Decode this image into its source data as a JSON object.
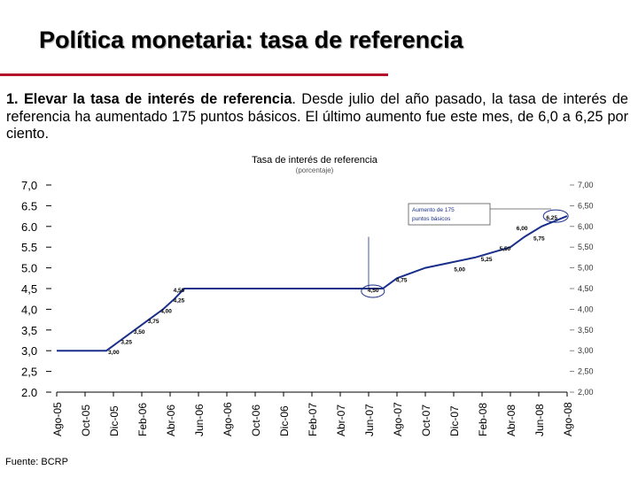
{
  "slide": {
    "title": "Política monetaria: tasa de referencia",
    "paragraph_bold": "1. Elevar la tasa de interés de referencia",
    "paragraph_rest": ". Desde julio del año pasado, la tasa de interés de referencia ha aumentado 175 puntos básicos. El último aumento fue este mes, de 6,0 a 6,25 por ciento.",
    "source": "Fuente: BCRP"
  },
  "colors": {
    "accent_rule": "#b3122a",
    "series": "#1a2f8a"
  },
  "chart_data": {
    "type": "line",
    "title": "Tasa de interés de referencia",
    "subtitle": "(porcentaje)",
    "ylim": [
      2.0,
      7.0
    ],
    "y_ticks_left": [
      "2.0",
      "2,5",
      "3,0",
      "3,5",
      "4,0",
      "4,5",
      "5.0",
      "5.5",
      "6.0",
      "6.5",
      "7,0"
    ],
    "y_ticks_right": [
      "2,00",
      "2,50",
      "3,00",
      "3,50",
      "4,00",
      "4,50",
      "5,00",
      "5,50",
      "6,00",
      "6,50",
      "7,00"
    ],
    "x_ticks": [
      "Ago-05",
      "Oct-05",
      "Dic-05",
      "Feb-06",
      "Abr-06",
      "Jun-06",
      "Ago-06",
      "Oct-06",
      "Dic-06",
      "Feb-07",
      "Abr-07",
      "Jun-07",
      "Ago-07",
      "Oct-07",
      "Dic-07",
      "Feb-08",
      "Abr-08",
      "Jun-08",
      "Ago-08"
    ],
    "x_months_from_start": [
      0,
      2,
      4,
      6,
      8,
      10,
      12,
      14,
      16,
      18,
      20,
      22,
      24,
      26,
      28,
      30,
      32,
      34,
      36
    ],
    "series": [
      {
        "steps": [
          {
            "x": 0,
            "y": 3.0
          },
          {
            "x": 3.5,
            "y": 3.0
          },
          {
            "x": 4.5,
            "y": 3.25
          },
          {
            "x": 5.5,
            "y": 3.5
          },
          {
            "x": 6.5,
            "y": 3.75
          },
          {
            "x": 7.5,
            "y": 4.0
          },
          {
            "x": 8.3,
            "y": 4.25
          },
          {
            "x": 9.0,
            "y": 4.5
          },
          {
            "x": 23.0,
            "y": 4.5
          },
          {
            "x": 24.0,
            "y": 4.75
          },
          {
            "x": 26.0,
            "y": 5.0
          },
          {
            "x": 29.5,
            "y": 5.25
          },
          {
            "x": 32.0,
            "y": 5.5
          },
          {
            "x": 33.0,
            "y": 5.75
          },
          {
            "x": 34.2,
            "y": 6.0
          },
          {
            "x": 36.0,
            "y": 6.25
          }
        ]
      }
    ],
    "data_labels": [
      {
        "text": "3,00",
        "x": 4.0,
        "y": 3.0
      },
      {
        "text": "3,25",
        "x": 4.9,
        "y": 3.25
      },
      {
        "text": "3,50",
        "x": 5.8,
        "y": 3.5
      },
      {
        "text": "3,75",
        "x": 6.8,
        "y": 3.75
      },
      {
        "text": "4,00",
        "x": 7.7,
        "y": 4.0
      },
      {
        "text": "4,25",
        "x": 8.6,
        "y": 4.25
      },
      {
        "text": "4,50",
        "x": 8.6,
        "y": 4.5
      },
      {
        "text": "4,50",
        "x": 22.3,
        "y": 4.5
      },
      {
        "text": "4,75",
        "x": 24.3,
        "y": 4.75
      },
      {
        "text": "5,00",
        "x": 28.4,
        "y": 5.0
      },
      {
        "text": "5,25",
        "x": 30.3,
        "y": 5.25
      },
      {
        "text": "5,50",
        "x": 31.6,
        "y": 5.5
      },
      {
        "text": "5,75",
        "x": 34.0,
        "y": 5.75
      },
      {
        "text": "6,00",
        "x": 32.8,
        "y": 6.0
      },
      {
        "text": "6,25",
        "x": 34.9,
        "y": 6.25
      }
    ],
    "annotation": {
      "line1": "Aumento de 175",
      "line2": "puntos básicos"
    },
    "grid": false
  }
}
